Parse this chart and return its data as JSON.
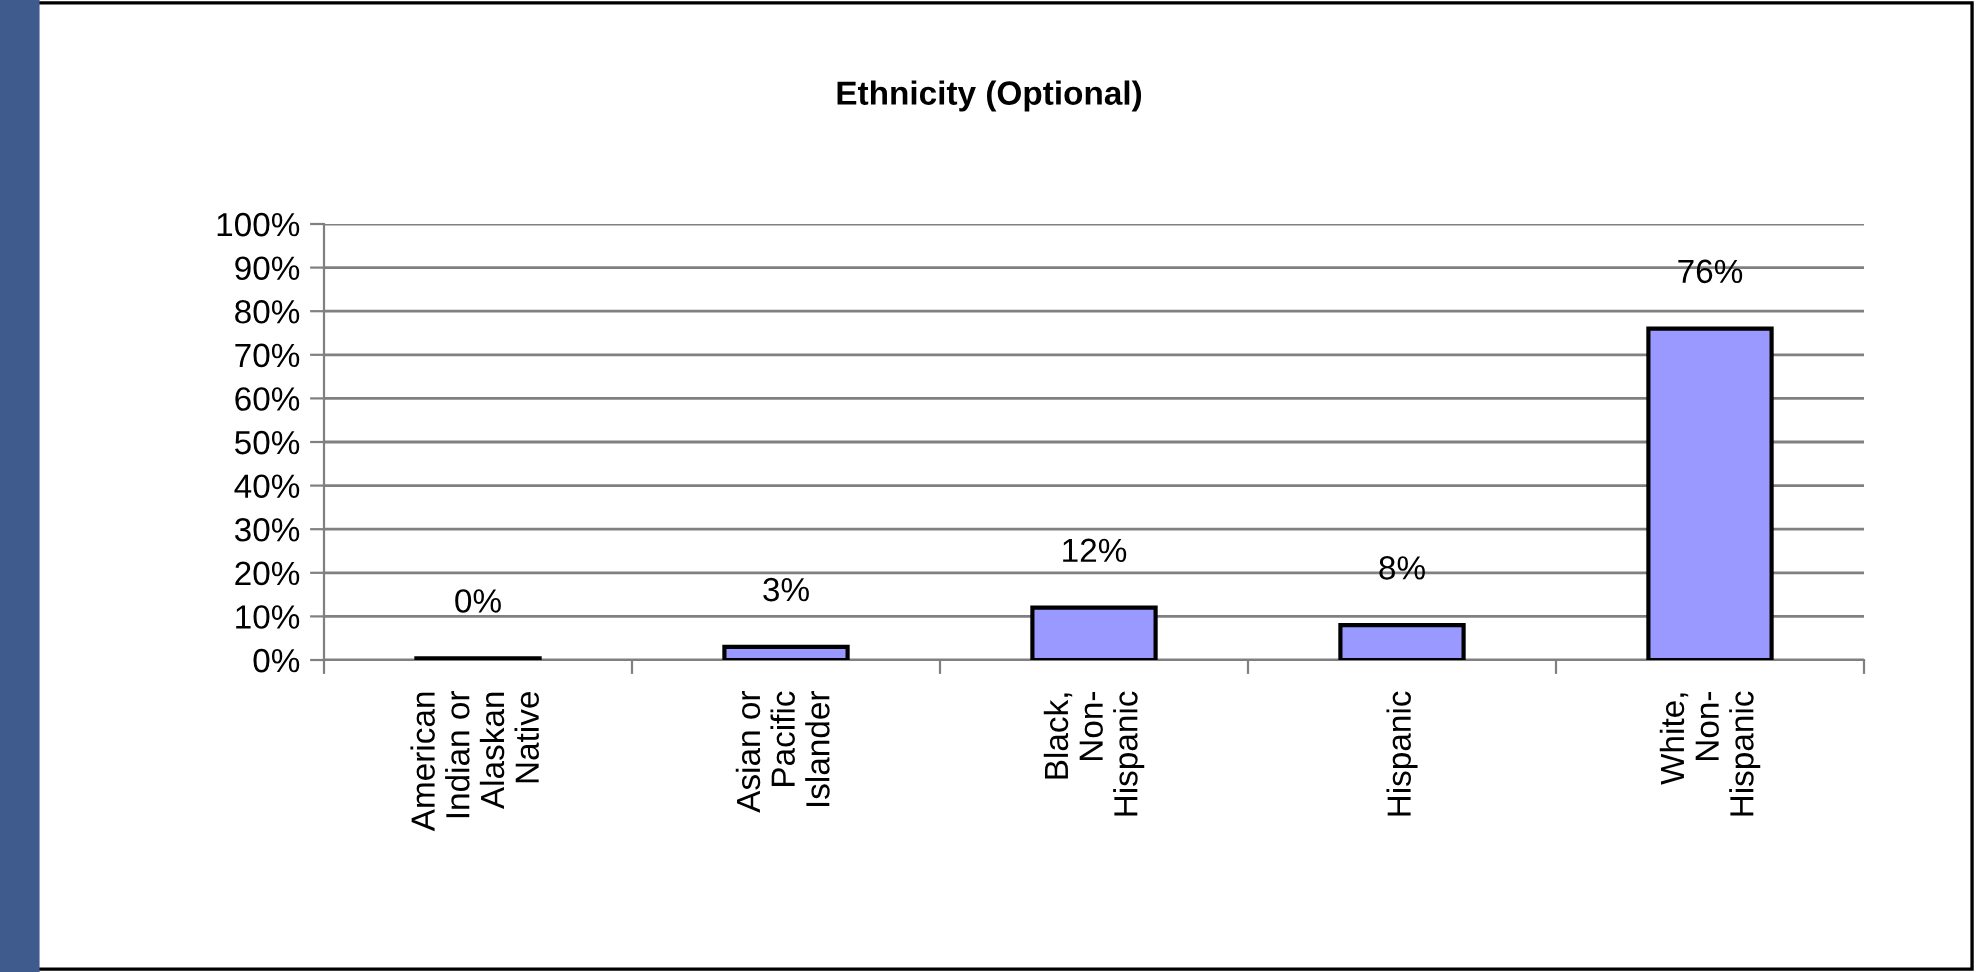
{
  "chart_data": {
    "type": "bar",
    "title": "Ethnicity (Optional)",
    "categories": [
      "American\nIndian or\nAlaskan\nNative",
      "Asian or\nPacific\nIslander",
      "Black,\nNon-\nHispanic",
      "Hispanic",
      "White,\nNon-\nHispanic"
    ],
    "values": [
      0.4,
      3,
      12,
      8,
      76
    ],
    "value_labels": [
      "0%",
      "3%",
      "12%",
      "8%",
      "76%"
    ],
    "color": "#9999ff",
    "ylim": [
      0,
      100
    ],
    "yticks": [
      {
        "value": 0,
        "label": "0%"
      },
      {
        "value": 10,
        "label": "10%"
      },
      {
        "value": 20,
        "label": "20%"
      },
      {
        "value": 30,
        "label": "30%"
      },
      {
        "value": 40,
        "label": "40%"
      },
      {
        "value": 50,
        "label": "50%"
      },
      {
        "value": 60,
        "label": "60%"
      },
      {
        "value": 70,
        "label": "70%"
      },
      {
        "value": 80,
        "label": "80%"
      },
      {
        "value": 90,
        "label": "90%"
      },
      {
        "value": 100,
        "label": "100%"
      }
    ],
    "grid": "y"
  }
}
